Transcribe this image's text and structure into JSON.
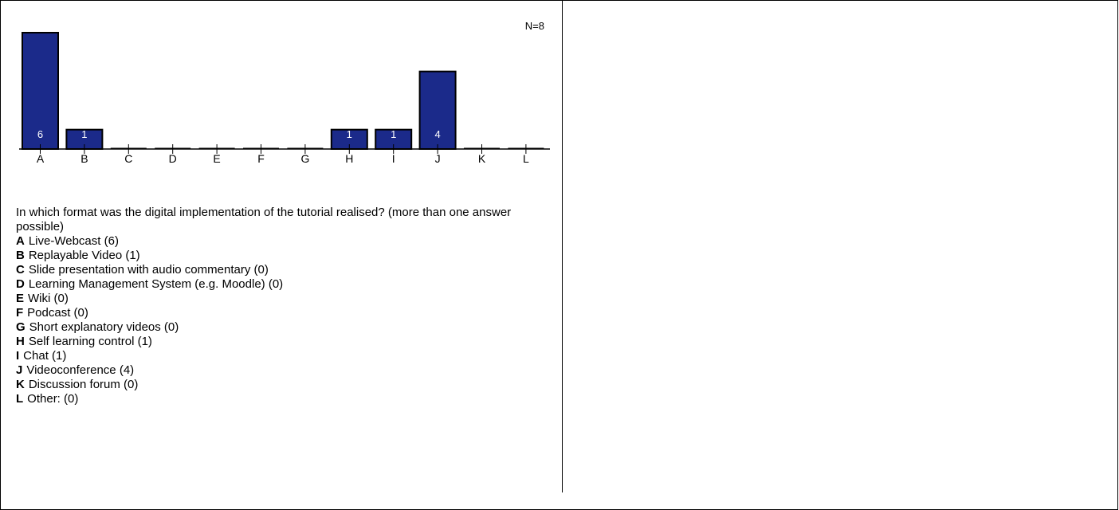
{
  "chart_data": {
    "type": "bar",
    "categories": [
      "A",
      "B",
      "C",
      "D",
      "E",
      "F",
      "G",
      "H",
      "I",
      "J",
      "K",
      "L"
    ],
    "values": [
      6,
      1,
      0,
      0,
      0,
      0,
      0,
      1,
      1,
      4,
      0,
      0
    ],
    "bar_color": "#1b2a8a",
    "title": "",
    "xlabel": "",
    "ylabel": "",
    "ylim": [
      0,
      6
    ],
    "grid": false,
    "annotation": "N=8"
  },
  "question": {
    "text": "In which format was the digital implementation of the tutorial realised? (more than one answer possible)",
    "options": [
      {
        "key": "A",
        "label": "Live-Webcast (6)"
      },
      {
        "key": "B",
        "label": "Replayable Video (1)"
      },
      {
        "key": "C",
        "label": "Slide presentation with audio commentary (0)"
      },
      {
        "key": "D",
        "label": "Learning Management System (e.g. Moodle) (0)"
      },
      {
        "key": "E",
        "label": "Wiki (0)"
      },
      {
        "key": "F",
        "label": "Podcast (0)"
      },
      {
        "key": "G",
        "label": "Short explanatory videos (0)"
      },
      {
        "key": "H",
        "label": "Self learning control (1)"
      },
      {
        "key": "I",
        "label": "Chat (1)"
      },
      {
        "key": "J",
        "label": "Videoconference (4)"
      },
      {
        "key": "K",
        "label": "Discussion forum (0)"
      },
      {
        "key": "L",
        "label": "Other: (0)"
      }
    ]
  }
}
